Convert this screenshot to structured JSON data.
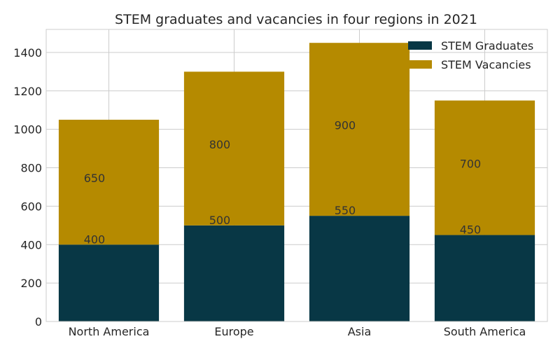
{
  "chart_data": {
    "type": "bar",
    "stacked": true,
    "title": "STEM graduates and vacancies in four regions in 2021",
    "xlabel": "",
    "ylabel": "",
    "categories": [
      "North America",
      "Europe",
      "Asia",
      "South America"
    ],
    "series": [
      {
        "name": "STEM Graduates",
        "values": [
          400,
          500,
          550,
          450
        ],
        "color": "#083745"
      },
      {
        "name": "STEM Vacancies",
        "values": [
          650,
          800,
          900,
          700
        ],
        "color": "#b58a00"
      }
    ],
    "ylim": [
      0,
      1520
    ],
    "yticks": [
      0,
      200,
      400,
      600,
      800,
      1000,
      1200,
      1400
    ],
    "grid": true,
    "legend_position": "top-right"
  }
}
